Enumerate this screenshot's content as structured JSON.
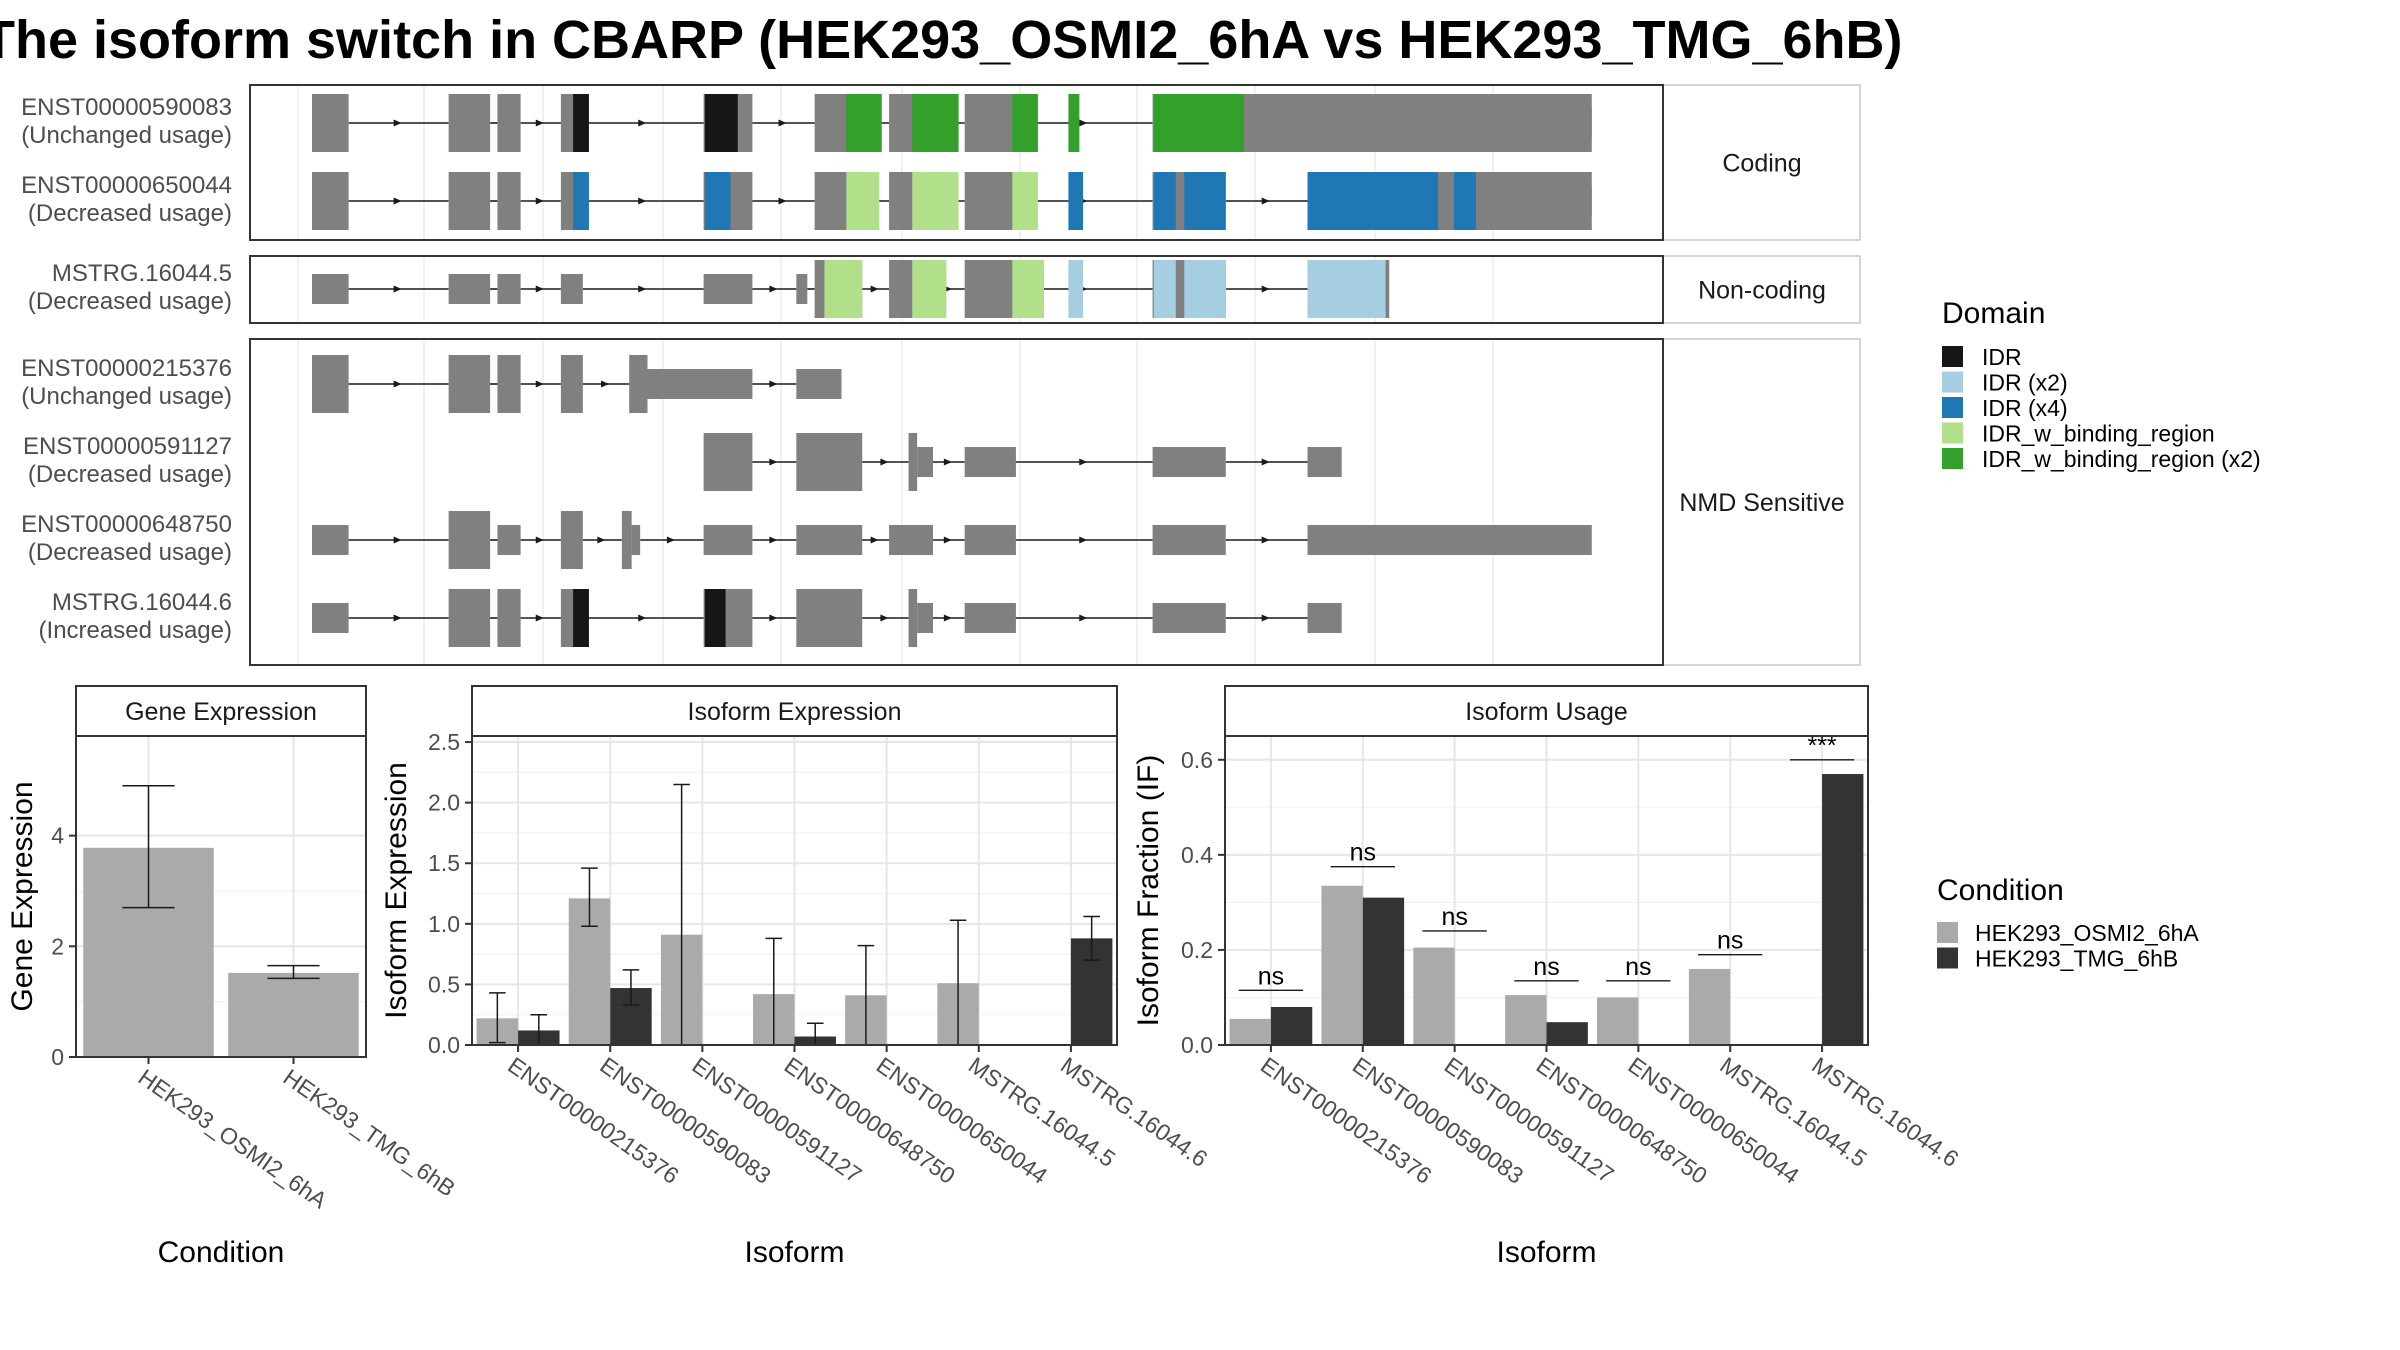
{
  "title": "The isoform switch in CBARP (HEK293_OSMI2_6hA vs HEK293_TMG_6hB)",
  "colors": {
    "exon": "#808080",
    "intron": "#1a1a1a",
    "cond_a": "#aaaaaa",
    "cond_b": "#333333",
    "IDR": "#161616",
    "IDR (x2)": "#a6cee3",
    "IDR (x4)": "#1f78b4",
    "IDR_w_binding_region": "#b2df8a",
    "IDR_w_binding_region (x2)": "#33a02c"
  },
  "structure": {
    "groups": [
      {
        "label": "Coding",
        "isoforms": [
          {
            "id": "ENST00000590083",
            "usage": "(Unchanged usage)",
            "exons": [
              [
                0,
                30,
                "n"
              ],
              [
                112,
                146,
                "n"
              ],
              [
                152,
                171,
                "n"
              ],
              [
                204,
                222,
                "n"
              ],
              [
                321,
                361,
                "n"
              ],
              [
                412,
                451,
                "n"
              ],
              [
                473,
                509,
                "n"
              ],
              [
                535,
                577,
                "n"
              ],
              [
                689,
                1049,
                "n"
              ]
            ],
            "domains": [
              [
                214,
                227,
                "IDR"
              ],
              [
                322,
                349,
                "IDR"
              ],
              [
                438,
                467,
                "IDR_w_binding_region (x2)"
              ],
              [
                492,
                530,
                "IDR_w_binding_region (x2)"
              ],
              [
                574,
                595,
                "IDR_w_binding_region (x2)"
              ],
              [
                620,
                629,
                "IDR_w_binding_region (x2)"
              ],
              [
                690,
                764,
                "IDR_w_binding_region (x2)"
              ]
            ],
            "thin": [
              [
                764,
                1049
              ]
            ]
          },
          {
            "id": "ENST00000650044",
            "usage": "(Decreased usage)",
            "exons": [
              [
                0,
                30,
                "n"
              ],
              [
                112,
                146,
                "n"
              ],
              [
                152,
                171,
                "n"
              ],
              [
                204,
                222,
                "n"
              ],
              [
                321,
                361,
                "n"
              ],
              [
                412,
                451,
                "n"
              ],
              [
                473,
                509,
                "n"
              ],
              [
                535,
                577,
                "n"
              ],
              [
                689,
                749,
                "n"
              ],
              [
                816,
                1049,
                "n"
              ]
            ],
            "domains": [
              [
                214,
                227,
                "IDR (x4)"
              ],
              [
                322,
                343,
                "IDR (x4)"
              ],
              [
                438,
                465,
                "IDR_w_binding_region"
              ],
              [
                492,
                530,
                "IDR_w_binding_region"
              ],
              [
                574,
                595,
                "IDR_w_binding_region"
              ],
              [
                620,
                632,
                "IDR (x4)"
              ],
              [
                690,
                708,
                "IDR (x4)"
              ],
              [
                715,
                749,
                "IDR (x4)"
              ],
              [
                816,
                923,
                "IDR (x4)"
              ],
              [
                936,
                954,
                "IDR (x4)"
              ]
            ],
            "thin": [
              [
                954,
                1049
              ]
            ]
          }
        ]
      },
      {
        "label": "Non-coding",
        "isoforms": [
          {
            "id": "MSTRG.16044.5",
            "usage": "(Decreased usage)",
            "exons": [
              [
                0,
                30,
                "s"
              ],
              [
                112,
                146,
                "s"
              ],
              [
                152,
                171,
                "s"
              ],
              [
                204,
                222,
                "s"
              ],
              [
                321,
                361,
                "s"
              ],
              [
                397,
                406,
                "s"
              ],
              [
                412,
                451,
                "n"
              ],
              [
                473,
                509,
                "n"
              ],
              [
                535,
                577,
                "n"
              ],
              [
                689,
                749,
                "n"
              ],
              [
                816,
                883,
                "n"
              ]
            ],
            "domains": [
              [
                420,
                451,
                "IDR_w_binding_region"
              ],
              [
                492,
                520,
                "IDR_w_binding_region"
              ],
              [
                574,
                600,
                "IDR_w_binding_region"
              ],
              [
                620,
                632,
                "IDR (x2)"
              ],
              [
                690,
                708,
                "IDR (x2)"
              ],
              [
                715,
                749,
                "IDR (x2)"
              ],
              [
                816,
                880,
                "IDR (x2)"
              ]
            ],
            "thin": []
          }
        ]
      },
      {
        "label": "NMD Sensitive",
        "isoforms": [
          {
            "id": "ENST00000215376",
            "usage": "(Unchanged usage)",
            "exons": [
              [
                0,
                30,
                "n"
              ],
              [
                112,
                146,
                "n"
              ],
              [
                152,
                171,
                "n"
              ],
              [
                204,
                222,
                "n"
              ],
              [
                260,
                275,
                "n"
              ],
              [
                275,
                361,
                "s"
              ],
              [
                397,
                434,
                "s"
              ]
            ],
            "domains": [],
            "thin": []
          },
          {
            "id": "ENST00000591127",
            "usage": "(Decreased usage)",
            "exons": [
              [
                321,
                361,
                "n"
              ],
              [
                397,
                451,
                "n"
              ],
              [
                489,
                496,
                "n"
              ],
              [
                496,
                509,
                "s"
              ],
              [
                535,
                577,
                "s"
              ],
              [
                689,
                749,
                "s"
              ],
              [
                816,
                844,
                "s"
              ]
            ],
            "domains": [],
            "thin": []
          },
          {
            "id": "ENST00000648750",
            "usage": "(Decreased usage)",
            "exons": [
              [
                0,
                30,
                "s"
              ],
              [
                112,
                146,
                "n"
              ],
              [
                152,
                171,
                "s"
              ],
              [
                204,
                222,
                "n"
              ],
              [
                254,
                262,
                "n"
              ],
              [
                262,
                269,
                "s"
              ],
              [
                321,
                361,
                "s"
              ],
              [
                397,
                451,
                "s"
              ],
              [
                473,
                509,
                "s"
              ],
              [
                535,
                577,
                "s"
              ],
              [
                689,
                749,
                "s"
              ],
              [
                816,
                1049,
                "s"
              ]
            ],
            "domains": [],
            "thin": []
          },
          {
            "id": "MSTRG.16044.6",
            "usage": "(Increased usage)",
            "exons": [
              [
                0,
                30,
                "s"
              ],
              [
                112,
                146,
                "n"
              ],
              [
                152,
                171,
                "n"
              ],
              [
                204,
                222,
                "n"
              ],
              [
                321,
                361,
                "n"
              ],
              [
                397,
                451,
                "n"
              ],
              [
                489,
                496,
                "n"
              ],
              [
                496,
                509,
                "s"
              ],
              [
                535,
                577,
                "s"
              ],
              [
                689,
                749,
                "s"
              ],
              [
                816,
                844,
                "s"
              ]
            ],
            "domains": [
              [
                214,
                227,
                "IDR"
              ],
              [
                322,
                339,
                "IDR"
              ]
            ],
            "thin": []
          }
        ]
      }
    ]
  },
  "legend_domain": {
    "title": "Domain",
    "items": [
      "IDR",
      "IDR (x2)",
      "IDR (x4)",
      "IDR_w_binding_region",
      "IDR_w_binding_region (x2)"
    ]
  },
  "legend_condition": {
    "title": "Condition",
    "items": [
      "HEK293_OSMI2_6hA",
      "HEK293_TMG_6hB"
    ]
  },
  "chart_data": [
    {
      "type": "bar",
      "title": "Gene Expression",
      "xlabel": "Condition",
      "ylabel": "Gene Expression",
      "ylim": [
        0,
        5.8
      ],
      "yticks": [
        0,
        2,
        4
      ],
      "categories": [
        "HEK293_OSMI2_6hA",
        "HEK293_TMG_6hB"
      ],
      "values": [
        3.78,
        1.52
      ],
      "err_low": [
        2.7,
        1.42
      ],
      "err_high": [
        4.9,
        1.65
      ]
    },
    {
      "type": "bar",
      "title": "Isoform Expression",
      "xlabel": "Isoform",
      "ylabel": "Isoform Expression",
      "ylim": [
        0,
        2.55
      ],
      "yticks": [
        0.0,
        0.5,
        1.0,
        1.5,
        2.0,
        2.5
      ],
      "categories": [
        "ENST00000215376",
        "ENST00000590083",
        "ENST00000591127",
        "ENST00000648750",
        "ENST00000650044",
        "MSTRG.16044.5",
        "MSTRG.16044.6"
      ],
      "series": [
        {
          "name": "HEK293_OSMI2_6hA",
          "values": [
            0.22,
            1.21,
            0.91,
            0.42,
            0.41,
            0.51,
            0.0
          ],
          "err_low": [
            0.02,
            0.98,
            0.0,
            0.0,
            0.0,
            0.0,
            0.0
          ],
          "err_high": [
            0.43,
            1.46,
            2.15,
            0.88,
            0.82,
            1.03,
            0.0
          ]
        },
        {
          "name": "HEK293_TMG_6hB",
          "values": [
            0.12,
            0.47,
            0.0,
            0.07,
            0.0,
            0.0,
            0.88
          ],
          "err_low": [
            0.0,
            0.33,
            0.0,
            0.0,
            0.0,
            0.0,
            0.7
          ],
          "err_high": [
            0.25,
            0.62,
            0.0,
            0.18,
            0.0,
            0.0,
            1.06
          ]
        }
      ]
    },
    {
      "type": "bar",
      "title": "Isoform Usage",
      "xlabel": "Isoform",
      "ylabel": "Isoform Fraction (IF)",
      "ylim": [
        0,
        0.65
      ],
      "yticks": [
        0.0,
        0.2,
        0.4,
        0.6
      ],
      "categories": [
        "ENST00000215376",
        "ENST00000590083",
        "ENST00000591127",
        "ENST00000648750",
        "ENST00000650044",
        "MSTRG.16044.5",
        "MSTRG.16044.6"
      ],
      "series": [
        {
          "name": "HEK293_OSMI2_6hA",
          "values": [
            0.055,
            0.335,
            0.205,
            0.105,
            0.1,
            0.16,
            0.0
          ]
        },
        {
          "name": "HEK293_TMG_6hB",
          "values": [
            0.08,
            0.31,
            0.0,
            0.048,
            0.0,
            0.0,
            0.57
          ]
        }
      ],
      "significance": [
        "ns",
        "ns",
        "ns",
        "ns",
        "ns",
        "ns",
        "***"
      ],
      "significance_y": [
        0.115,
        0.375,
        0.24,
        0.135,
        0.135,
        0.19,
        0.6
      ]
    }
  ]
}
